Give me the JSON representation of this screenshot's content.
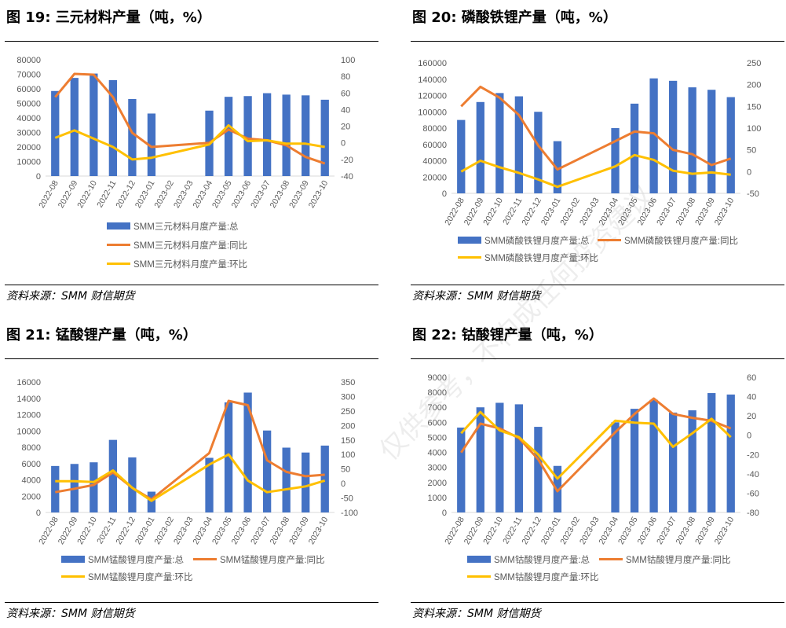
{
  "watermark": "仅供参考，不构成任何投资建议",
  "colors": {
    "bar": "#4472C4",
    "yoy": "#ED7D31",
    "mom": "#FFC000"
  },
  "panels": [
    {
      "title": "图 19:  三元材料产量（吨，%）",
      "source": "资料来源：SMM  财信期货",
      "legend": [
        "SMM三元材料月度产量:总",
        "SMM三元材料月度产量:同比",
        "SMM三元材料月度产量:环比"
      ],
      "legend_layout": "stacked"
    },
    {
      "title": "图 20:  磷酸铁锂产量（吨，%）",
      "source": "资料来源：SMM  财信期货",
      "legend": [
        "SMM磷酸铁锂月度产量:总",
        "SMM磷酸铁锂月度产量:同比",
        "SMM磷酸铁锂月度产量:环比"
      ],
      "legend_layout": "two-rows"
    },
    {
      "title": "图 21:  锰酸锂产量（吨，%）",
      "source": "资料来源：SMM  财信期货",
      "legend": [
        "SMM锰酸锂月度产量:总",
        "SMM锰酸锂月度产量:同比",
        "SMM锰酸锂月度产量:环比"
      ],
      "legend_layout": "two-rows"
    },
    {
      "title": "图 22:  钴酸锂产量（吨，%）",
      "source": "资料来源：SMM  财信期货",
      "legend": [
        "SMM钴酸锂月度产量:总",
        "SMM钴酸锂月度产量:同比",
        "SMM钴酸锂月度产量:环比"
      ],
      "legend_layout": "two-rows"
    }
  ],
  "chart_data": [
    {
      "type": "bar",
      "categories": [
        "2022-08",
        "2022-09",
        "2022-10",
        "2022-11",
        "2022-12",
        "2023-01",
        "2023-02",
        "2023-03",
        "2023-04",
        "2023-05",
        "2023-06",
        "2023-07",
        "2023-08",
        "2023-09",
        "2023-10"
      ],
      "y_left": {
        "min": 0,
        "max": 80000,
        "step": 10000
      },
      "y_right": {
        "min": -40,
        "max": 100,
        "step": 20
      },
      "series": [
        {
          "name": "SMM三元材料月度产量:总",
          "type": "bar",
          "axis": "left",
          "values": [
            58500,
            67500,
            70500,
            66000,
            53000,
            43000,
            null,
            null,
            45000,
            54500,
            55000,
            57000,
            56000,
            55500,
            52500
          ]
        },
        {
          "name": "SMM三元材料月度产量:同比",
          "type": "line",
          "axis": "right",
          "values": [
            55,
            83,
            82,
            55,
            12,
            -5,
            null,
            null,
            0,
            16,
            5,
            3,
            -3,
            -17,
            -25
          ]
        },
        {
          "name": "SMM三元材料月度产量:环比",
          "type": "line",
          "axis": "right",
          "values": [
            6,
            15,
            5,
            -5,
            -20,
            -18,
            null,
            null,
            -2,
            21,
            2,
            3,
            -1,
            -1,
            -5
          ]
        }
      ]
    },
    {
      "type": "bar",
      "categories": [
        "2022-08",
        "2022-09",
        "2022-10",
        "2022-11",
        "2022-12",
        "2023-01",
        "2023-02",
        "2023-03",
        "2023-04",
        "2023-05",
        "2023-06",
        "2023-07",
        "2023-08",
        "2023-09",
        "2023-10"
      ],
      "y_left": {
        "min": 0,
        "max": 160000,
        "step": 20000
      },
      "y_right": {
        "min": -50,
        "max": 250,
        "step": 50
      },
      "series": [
        {
          "name": "SMM磷酸铁锂月度产量:总",
          "type": "bar",
          "axis": "left",
          "values": [
            90000,
            112000,
            123000,
            119000,
            100000,
            64000,
            null,
            null,
            80000,
            110000,
            141000,
            138000,
            130000,
            127000,
            118000
          ]
        },
        {
          "name": "SMM磷酸铁锂月度产量:同比",
          "type": "line",
          "axis": "right",
          "values": [
            150,
            195,
            170,
            130,
            60,
            5,
            null,
            null,
            70,
            92,
            88,
            50,
            40,
            15,
            30
          ]
        },
        {
          "name": "SMM磷酸铁锂月度产量:环比",
          "type": "line",
          "axis": "right",
          "values": [
            0,
            25,
            10,
            -3,
            -18,
            -35,
            null,
            null,
            12,
            38,
            27,
            2,
            -5,
            -2,
            -7
          ]
        }
      ]
    },
    {
      "type": "bar",
      "categories": [
        "2022-08",
        "2022-09",
        "2022-10",
        "2022-11",
        "2022-12",
        "2023-01",
        "2023-02",
        "2023-03",
        "2023-04",
        "2023-05",
        "2023-06",
        "2023-07",
        "2023-08",
        "2023-09",
        "2023-10"
      ],
      "y_left": {
        "min": 0,
        "max": 16000,
        "step": 2000
      },
      "y_right": {
        "min": -100,
        "max": 350,
        "step": 50
      },
      "series": [
        {
          "name": "SMM锰酸锂月度产量:总",
          "type": "bar",
          "axis": "left",
          "values": [
            5700,
            5950,
            6150,
            8900,
            6750,
            2550,
            null,
            null,
            6700,
            13500,
            14700,
            10050,
            7950,
            7350,
            8200
          ]
        },
        {
          "name": "SMM锰酸锂月度产量:同比",
          "type": "line",
          "axis": "right",
          "values": [
            -30,
            -18,
            -5,
            38,
            -15,
            -55,
            null,
            null,
            105,
            285,
            270,
            80,
            40,
            25,
            30
          ]
        },
        {
          "name": "SMM锰酸锂月度产量:环比",
          "type": "line",
          "axis": "right",
          "values": [
            8,
            8,
            5,
            45,
            -15,
            -60,
            null,
            null,
            65,
            100,
            10,
            -30,
            -20,
            -10,
            10
          ]
        }
      ]
    },
    {
      "type": "bar",
      "categories": [
        "2022-08",
        "2022-09",
        "2022-10",
        "2022-11",
        "2022-12",
        "2023-01",
        "2023-02",
        "2023-03",
        "2023-04",
        "2023-05",
        "2023-06",
        "2023-07",
        "2023-08",
        "2023-09",
        "2023-10"
      ],
      "y_left": {
        "min": 0,
        "max": 9000,
        "step": 1000
      },
      "y_right": {
        "min": -80,
        "max": 60,
        "step": 20
      },
      "series": [
        {
          "name": "SMM钴酸锂月度产量:总",
          "type": "bar",
          "axis": "left",
          "values": [
            5650,
            7000,
            7300,
            7200,
            5700,
            3100,
            null,
            null,
            6000,
            6900,
            7500,
            6650,
            6800,
            7950,
            7850
          ]
        },
        {
          "name": "SMM钴酸锂月度产量:同比",
          "type": "line",
          "axis": "right",
          "values": [
            -18,
            12,
            7,
            -3,
            -25,
            -58,
            null,
            null,
            3,
            22,
            38,
            22,
            18,
            15,
            7
          ]
        },
        {
          "name": "SMM钴酸锂月度产量:环比",
          "type": "line",
          "axis": "right",
          "values": [
            2,
            24,
            5,
            -2,
            -20,
            -45,
            null,
            null,
            15,
            13,
            12,
            -12,
            2,
            17,
            -2
          ]
        }
      ]
    }
  ]
}
